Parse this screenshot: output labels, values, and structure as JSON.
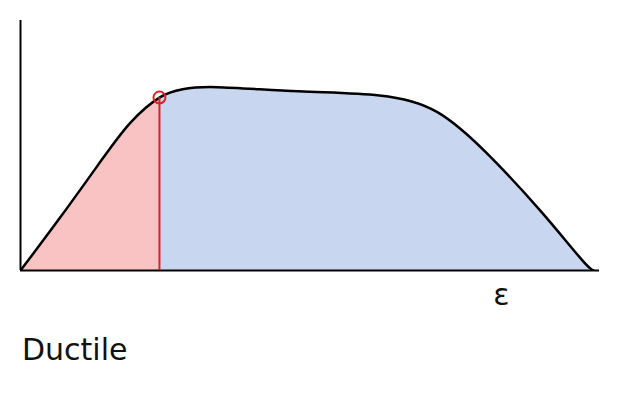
{
  "chart_data": {
    "type": "line",
    "x_label": "ε",
    "caption": "Ductile",
    "x": [
      0,
      7,
      14,
      19,
      24,
      28,
      34,
      48,
      62,
      72,
      81,
      90,
      97,
      99
    ],
    "values": [
      0,
      26,
      53,
      71,
      83,
      87,
      88,
      86,
      84,
      76,
      55,
      28,
      5,
      0
    ],
    "color": "#000000",
    "xlim": [
      0,
      100
    ],
    "ylim": [
      0,
      120
    ],
    "xticks": [],
    "yticks": [],
    "tick_labels": false,
    "yield_point": {
      "x": 24,
      "y": 83,
      "color": "#e02020"
    },
    "regions": [
      {
        "from": 0,
        "to": 24,
        "color": "#e8262a"
      },
      {
        "from": 24,
        "to": 99,
        "color": "#3a6fc4"
      }
    ]
  }
}
